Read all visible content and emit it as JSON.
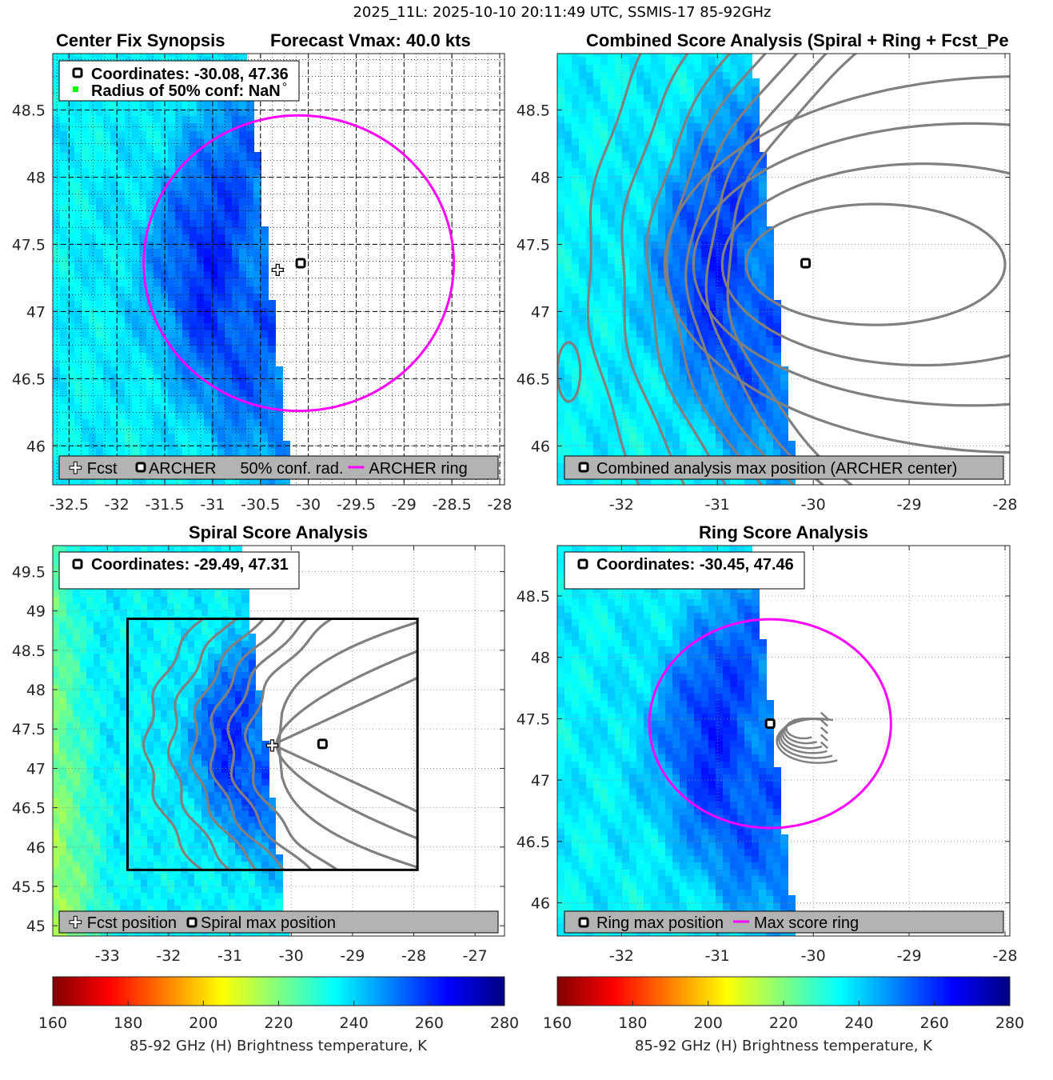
{
  "figure_title": "2025_11L: 2025-10-10 20:11:49 UTC, SSMIS-17 85-92GHz",
  "colors": {
    "ring": "#ff00ff",
    "contour": "#808080",
    "legend_bg": "#b3b3b3",
    "conf_marker": "#00ff00"
  },
  "chart_data": {
    "type": "heatmap",
    "colormap": "jet-reversed",
    "panels": [
      {
        "id": "center-fix",
        "title_left": "Center Fix Synopsis",
        "title_right": "Forecast Vmax: 40.0 kts",
        "xlim": [
          -32.67,
          -27.95
        ],
        "ylim": [
          45.71,
          48.92
        ],
        "xticks": [
          -32.5,
          -32,
          -31.5,
          -31,
          -30.5,
          -30,
          -29.5,
          -29,
          -28.5,
          -28
        ],
        "xtick_labels": [
          "-32.5",
          "-32",
          "-31.5",
          "-31",
          "-30.5",
          "-30",
          "-29.5",
          "-29",
          "-28.5",
          "-28"
        ],
        "yticks": [
          46,
          46.5,
          47,
          47.5,
          48,
          48.5
        ],
        "ytick_labels": [
          "46",
          "46.5",
          "47",
          "47.5",
          "48",
          "48.5"
        ],
        "grid": "dashed-major-dotted-minor",
        "info_lines": [
          "Coordinates: -30.08, 47.36",
          "Radius of 50% conf: NaN"
        ],
        "info_degree": "°",
        "legend": [
          "Fcst",
          "ARCHER",
          "50% conf. rad.",
          "ARCHER ring"
        ],
        "fcst_position": [
          -30.32,
          47.31
        ],
        "archer_position": [
          -30.08,
          47.36
        ],
        "ring": {
          "center": [
            -30.1,
            47.36
          ],
          "radius_lon": 1.62,
          "radius_lat": 1.1
        }
      },
      {
        "id": "combined",
        "title": "Combined Score Analysis (Spiral + Ring + Fcst_Pe",
        "xlim": [
          -32.67,
          -27.95
        ],
        "ylim": [
          45.71,
          48.92
        ],
        "xticks": [
          -32,
          -31,
          -30,
          -29,
          -28
        ],
        "xtick_labels": [
          "-32",
          "-31",
          "-30",
          "-29",
          "-28"
        ],
        "yticks": [
          46,
          46.5,
          47,
          47.5,
          48,
          48.5
        ],
        "ytick_labels": [
          "46",
          "46.5",
          "47",
          "47.5",
          "48",
          "48.5"
        ],
        "grid": "dotted",
        "legend": [
          "Combined analysis max position (ARCHER center)"
        ],
        "max_position": [
          -30.08,
          47.36
        ]
      },
      {
        "id": "spiral",
        "title": "Spiral Score Analysis",
        "xlim": [
          -33.89,
          -26.52
        ],
        "ylim": [
          44.87,
          49.83
        ],
        "xticks": [
          -33,
          -32,
          -31,
          -30,
          -29,
          -28,
          -27
        ],
        "xtick_labels": [
          "-33",
          "-32",
          "-31",
          "-30",
          "-29",
          "-28",
          "-27"
        ],
        "yticks": [
          45,
          45.5,
          46,
          46.5,
          47,
          47.5,
          48,
          48.5,
          49,
          49.5
        ],
        "ytick_labels": [
          "45",
          "45.5",
          "46",
          "46.5",
          "47",
          "47.5",
          "48",
          "48.5",
          "49",
          "49.5"
        ],
        "grid": "dotted",
        "info_lines": [
          "Coordinates: -29.49, 47.31"
        ],
        "legend": [
          "Fcst position",
          "Spiral max position"
        ],
        "fcst_position": [
          -30.31,
          47.29
        ],
        "max_position": [
          -29.49,
          47.31
        ],
        "search_box": {
          "lon": [
            -32.67,
            -27.94
          ],
          "lat": [
            45.71,
            48.9
          ]
        }
      },
      {
        "id": "ring",
        "title": "Ring Score Analysis",
        "xlim": [
          -32.67,
          -27.95
        ],
        "ylim": [
          45.73,
          48.91
        ],
        "xticks": [
          -32,
          -31,
          -30,
          -29,
          -28
        ],
        "xtick_labels": [
          "-32",
          "-31",
          "-30",
          "-29",
          "-28"
        ],
        "yticks": [
          46,
          46.5,
          47,
          47.5,
          48,
          48.5
        ],
        "ytick_labels": [
          "46",
          "46.5",
          "47",
          "47.5",
          "48",
          "48.5"
        ],
        "grid": "dotted",
        "info_lines": [
          "Coordinates: -30.45, 47.46"
        ],
        "legend": [
          "Ring max position",
          "Max score ring"
        ],
        "max_position": [
          -30.45,
          47.46
        ],
        "ring": {
          "center": [
            -30.45,
            47.46
          ],
          "radius_lon": 1.26,
          "radius_lat": 0.85
        }
      }
    ],
    "colorbar": {
      "range": [
        160,
        280
      ],
      "ticks": [
        160,
        180,
        200,
        220,
        240,
        260,
        280
      ],
      "tick_labels": [
        "160",
        "180",
        "200",
        "220",
        "240",
        "260",
        "280"
      ],
      "label": "85-92 GHz (H) Brightness temperature, K"
    }
  }
}
